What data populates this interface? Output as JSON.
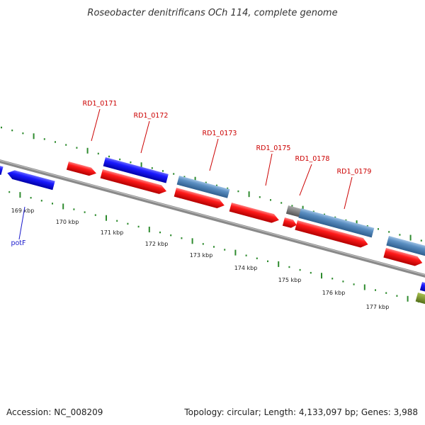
{
  "title": "Roseobacter denitrificans OCh 114, complete genome",
  "footer": {
    "accession": "Accession: NC_008209",
    "summary": "Topology: circular; Length: 4,133,097 bp; Genes: 3,988"
  },
  "colors": {
    "backbone": "#8a8a8a",
    "tick": "#2e8b2e",
    "gene_red": "#ff1a1a",
    "gene_blue": "#1a1aff",
    "gene_steel": "#5b8fc2",
    "gene_gray": "#777777",
    "gene_olive": "#7a9a2a",
    "label_red": "#cc0000",
    "label_blue": "#1a1acc"
  },
  "ticks": [
    {
      "label": "169 kbp"
    },
    {
      "label": "170 kbp"
    },
    {
      "label": "171 kbp"
    },
    {
      "label": "172 kbp"
    },
    {
      "label": "173 kbp"
    },
    {
      "label": "174 kbp"
    },
    {
      "label": "175 kbp"
    },
    {
      "label": "176 kbp"
    },
    {
      "label": "177 kbp"
    }
  ],
  "gene_labels": [
    {
      "name": "RD1_0171",
      "color": "label_red"
    },
    {
      "name": "RD1_0172",
      "color": "label_red"
    },
    {
      "name": "RD1_0173",
      "color": "label_red"
    },
    {
      "name": "RD1_0175",
      "color": "label_red"
    },
    {
      "name": "RD1_0178",
      "color": "label_red"
    },
    {
      "name": "RD1_0179",
      "color": "label_red"
    },
    {
      "name": "potF",
      "color": "label_blue"
    }
  ]
}
